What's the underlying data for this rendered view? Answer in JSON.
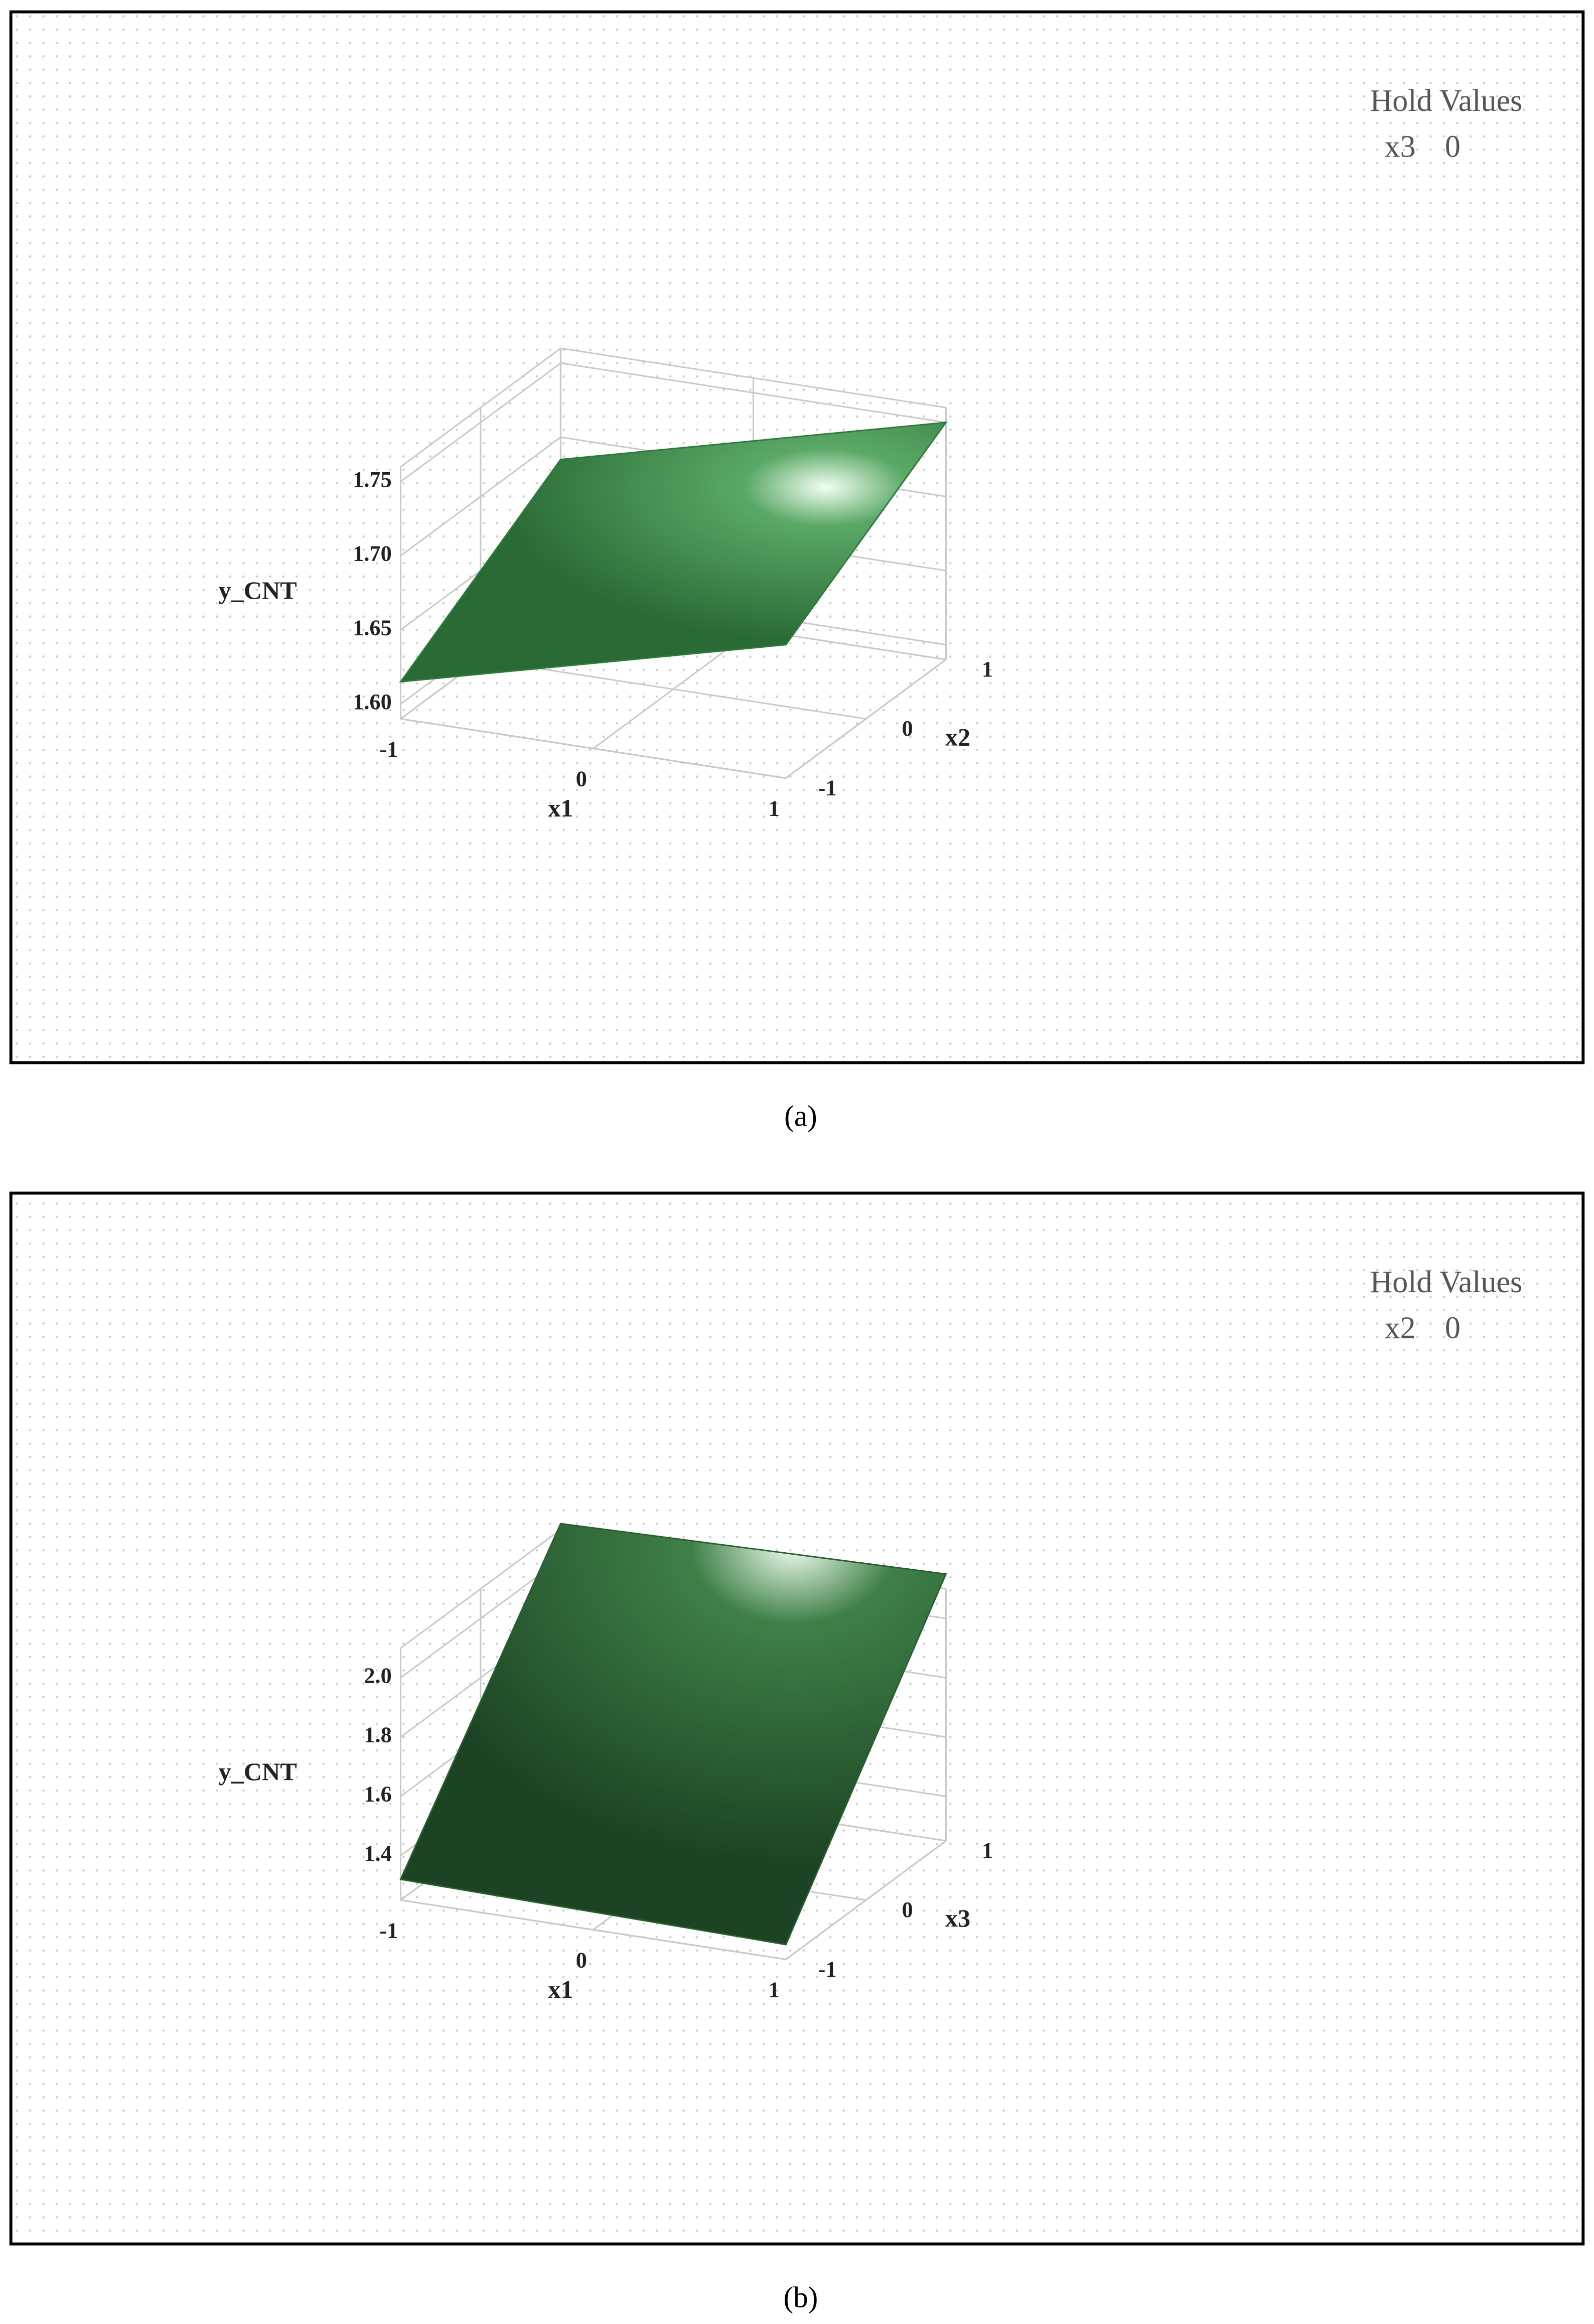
{
  "chart_data": [
    {
      "type": "surface",
      "caption": "(a)",
      "x_label": "x1",
      "y_label": "x2",
      "z_label": "y_CNT",
      "x": [
        -1,
        1
      ],
      "y": [
        -1,
        1
      ],
      "z": [
        [
          1.615,
          1.685
        ],
        [
          1.68,
          1.75
        ]
      ],
      "xlim": [
        -1,
        1
      ],
      "ylim": [
        -1,
        1
      ],
      "zlim": [
        1.59,
        1.76
      ],
      "xticks": [
        -1,
        0,
        1
      ],
      "yticks": [
        -1,
        0,
        1
      ],
      "zticks": [
        {
          "value": 1.6,
          "label": "1.60"
        },
        1.65,
        {
          "value": 1.7,
          "label": "1.70"
        },
        1.75
      ],
      "hold_title": "Hold Values",
      "hold_var": "x3",
      "hold_value": 0,
      "color": "#2f7a3c",
      "grid": true
    },
    {
      "type": "surface",
      "caption": "(b)",
      "x_label": "x1",
      "y_label": "x3",
      "z_label": "y_CNT",
      "x": [
        -1,
        1
      ],
      "y": [
        -1,
        1
      ],
      "z": [
        [
          1.32,
          2.12
        ],
        [
          1.3,
          2.15
        ]
      ],
      "xlim": [
        -1,
        1
      ],
      "ylim": [
        -1,
        1
      ],
      "zlim": [
        1.25,
        2.1
      ],
      "xticks": [
        -1,
        0,
        1
      ],
      "yticks": [
        -1,
        0,
        1
      ],
      "zticks": [
        1.4,
        1.6,
        1.8,
        {
          "value": 2,
          "label": "2.0"
        }
      ],
      "hold_title": "Hold Values",
      "hold_var": "x2",
      "hold_value": 0,
      "color": "#2a5e30",
      "grid": true
    }
  ]
}
